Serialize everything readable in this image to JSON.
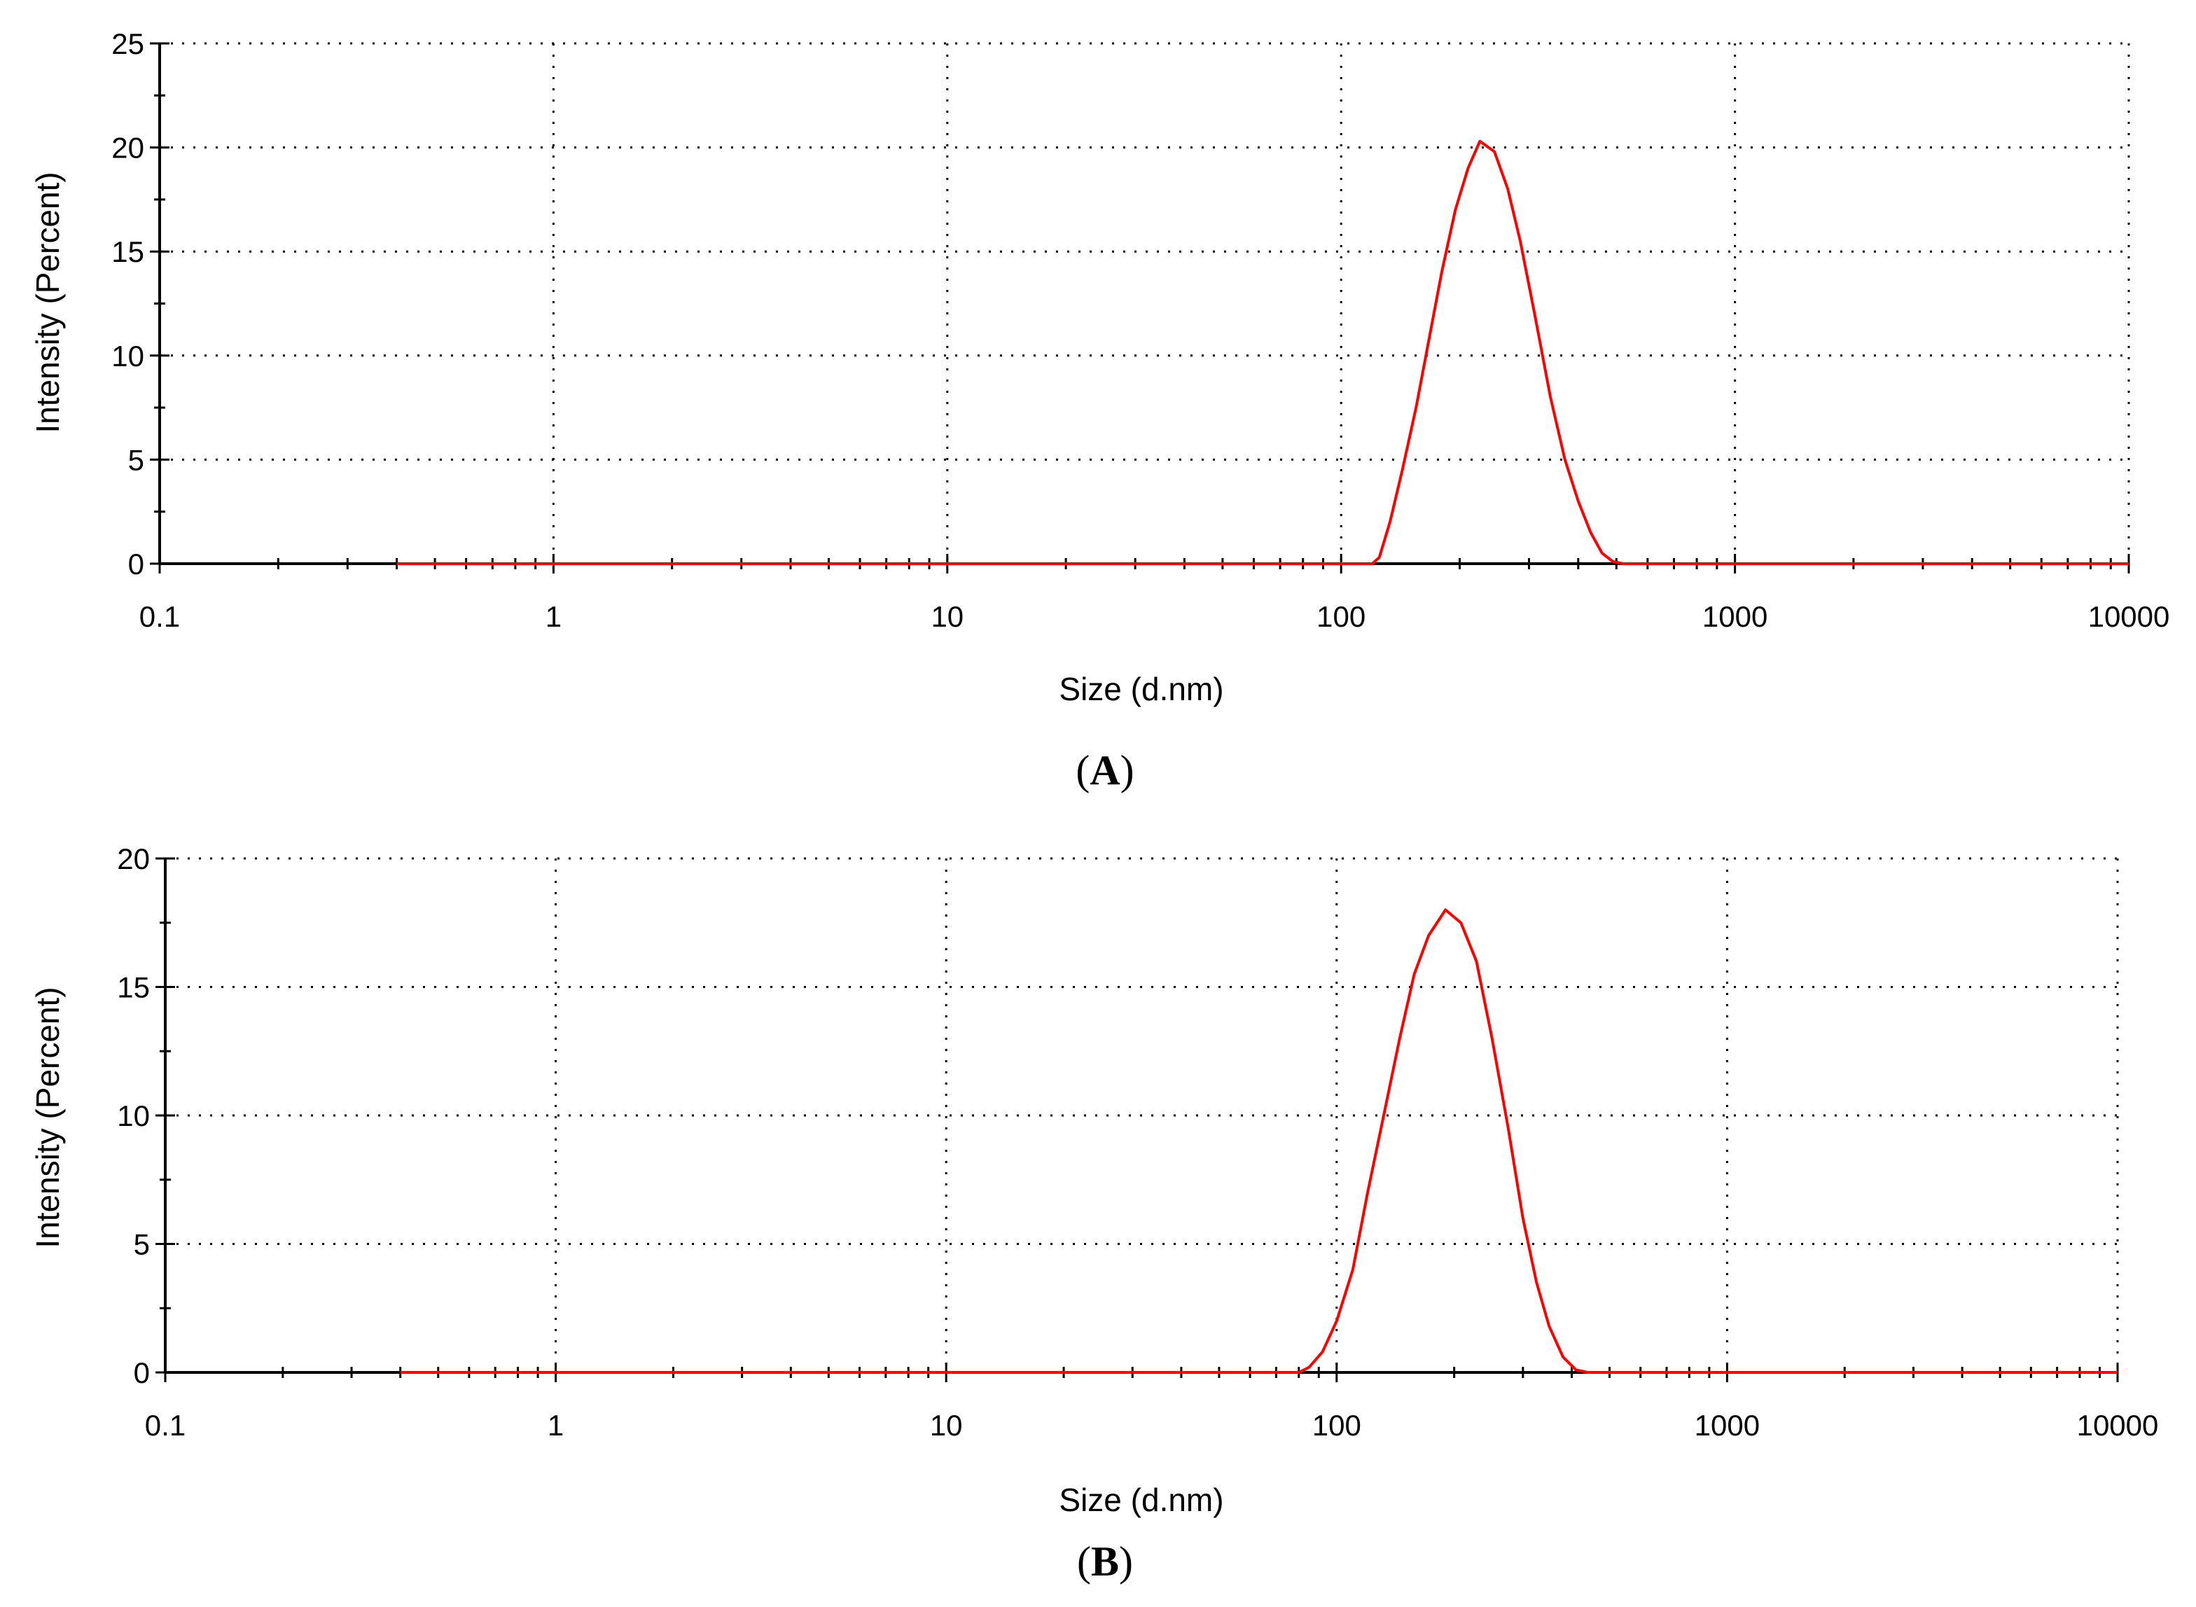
{
  "chart_data": [
    {
      "type": "line",
      "panel_label_prefix": "(",
      "panel_label_letter": "A",
      "panel_label_suffix": ")",
      "xlabel": "Size (d.nm)",
      "ylabel": "Intensity (Percent)",
      "xscale": "log",
      "xlim": [
        0.1,
        10000
      ],
      "ylim": [
        0,
        25
      ],
      "xticks": [
        "0.1",
        "1",
        "10",
        "100",
        "1000",
        "10000"
      ],
      "yticks": [
        "0",
        "5",
        "10",
        "15",
        "20",
        "25"
      ],
      "grid": true,
      "series": [
        {
          "color": "#ff0000",
          "x": [
            0.4,
            120,
            125,
            133,
            143,
            155,
            168,
            180,
            195,
            210,
            225,
            245,
            265,
            285,
            310,
            340,
            370,
            400,
            430,
            460,
            490,
            520,
            10000
          ],
          "y": [
            0,
            0,
            0.3,
            2,
            4.5,
            7.5,
            11,
            14,
            17,
            19,
            20.3,
            19.8,
            18,
            15.5,
            12,
            8,
            5,
            3,
            1.5,
            0.5,
            0.1,
            0,
            0
          ]
        }
      ]
    },
    {
      "type": "line",
      "panel_label_prefix": "(",
      "panel_label_letter": "B",
      "panel_label_suffix": ")",
      "xlabel": "Size (d.nm)",
      "ylabel": "Intensity (Percent)",
      "xscale": "log",
      "xlim": [
        0.1,
        10000
      ],
      "ylim": [
        0,
        20
      ],
      "xticks": [
        "0.1",
        "1",
        "10",
        "100",
        "1000",
        "10000"
      ],
      "yticks": [
        "0",
        "5",
        "10",
        "15",
        "20"
      ],
      "grid": true,
      "series": [
        {
          "color": "#ff0000",
          "x": [
            0.4,
            80,
            85,
            92,
            100,
            110,
            120,
            132,
            145,
            158,
            172,
            190,
            208,
            228,
            250,
            275,
            300,
            325,
            350,
            380,
            410,
            440,
            10000
          ],
          "y": [
            0,
            0,
            0.2,
            0.8,
            2,
            4,
            7,
            10,
            13,
            15.5,
            17,
            18,
            17.5,
            16,
            13,
            9.5,
            6,
            3.5,
            1.8,
            0.6,
            0.1,
            0,
            0
          ]
        }
      ]
    }
  ]
}
